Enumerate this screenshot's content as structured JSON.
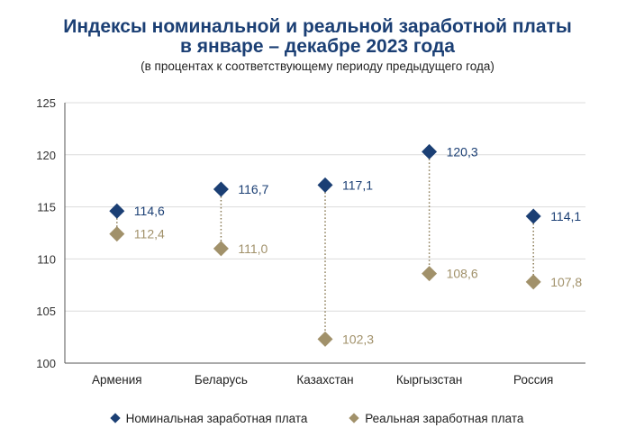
{
  "title_line1": "Индексы номинальной и реальной заработной платы",
  "title_line2": "в январе – декабре 2023 года",
  "subtitle": "(в процентах к соответствующему периоду предыдущего года)",
  "colors": {
    "nominal": "#1b3f74",
    "real": "#a1916a",
    "title": "#1b3f74",
    "grid": "#dcdcdc"
  },
  "chart_data": {
    "type": "scatter",
    "categories": [
      "Армения",
      "Беларусь",
      "Казахстан",
      "Кыргызстан",
      "Россия"
    ],
    "series": [
      {
        "name": "Номинальная заработная плата",
        "values": [
          114.6,
          116.7,
          117.1,
          120.3,
          114.1
        ],
        "labels": [
          "114,6",
          "116,7",
          "117,1",
          "120,3",
          "114,1"
        ]
      },
      {
        "name": "Реальная заработная плата",
        "values": [
          112.4,
          111.0,
          102.3,
          108.6,
          107.8
        ],
        "labels": [
          "112,4",
          "111,0",
          "102,3",
          "108,6",
          "107,8"
        ]
      }
    ],
    "ylim": [
      100,
      125
    ],
    "yticks": [
      100,
      105,
      110,
      115,
      120,
      125
    ],
    "ytick_labels": [
      "100",
      "105",
      "110",
      "115",
      "120",
      "125"
    ],
    "grid": true,
    "legend": "bottom"
  }
}
